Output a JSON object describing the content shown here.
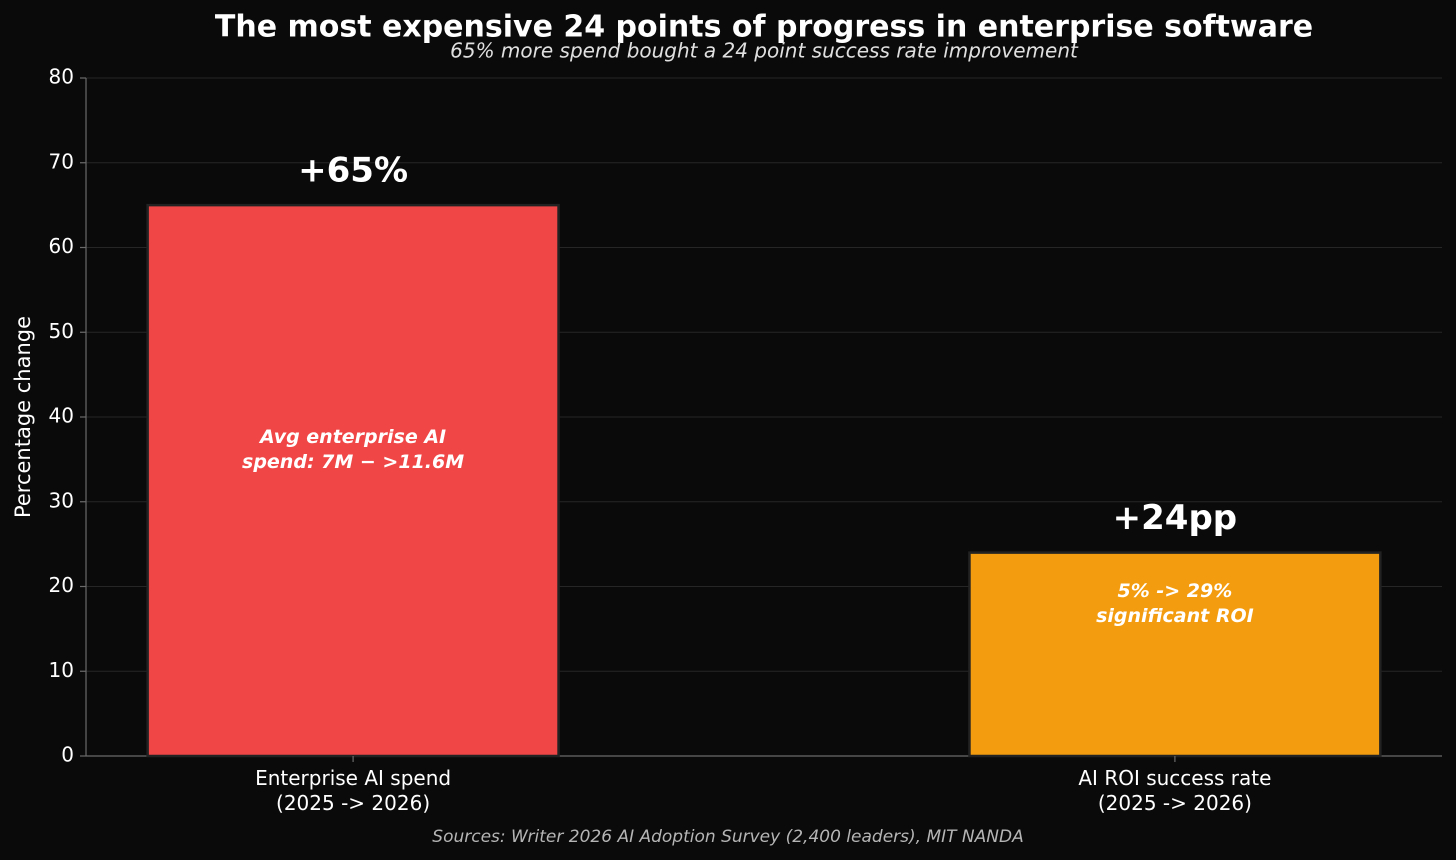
{
  "chart_data": {
    "type": "bar",
    "title": "The most expensive 24 points of progress in enterprise software",
    "subtitle": "65% more spend bought a 24 point success rate improvement",
    "y_label": "Percentage change",
    "categories": [
      "Enterprise AI spend\n(2025 -> 2026)",
      "AI ROI success rate\n(2025 -> 2026)"
    ],
    "values": [
      65,
      24
    ],
    "value_labels": [
      "+65%",
      "+24pp"
    ],
    "colors": [
      "#f04646",
      "#f39c0f"
    ],
    "annotations": [
      "Avg enterprise AI\nspend: 7M − >11.6M",
      "5% -> 29%\nsignificant ROI"
    ],
    "ylim": [
      0,
      80
    ],
    "yticks": [
      0,
      10,
      20,
      30,
      40,
      50,
      60,
      70,
      80
    ],
    "grid": true,
    "source": "Sources: Writer 2026 AI Adoption Survey (2,400 leaders), MIT NANDA"
  }
}
